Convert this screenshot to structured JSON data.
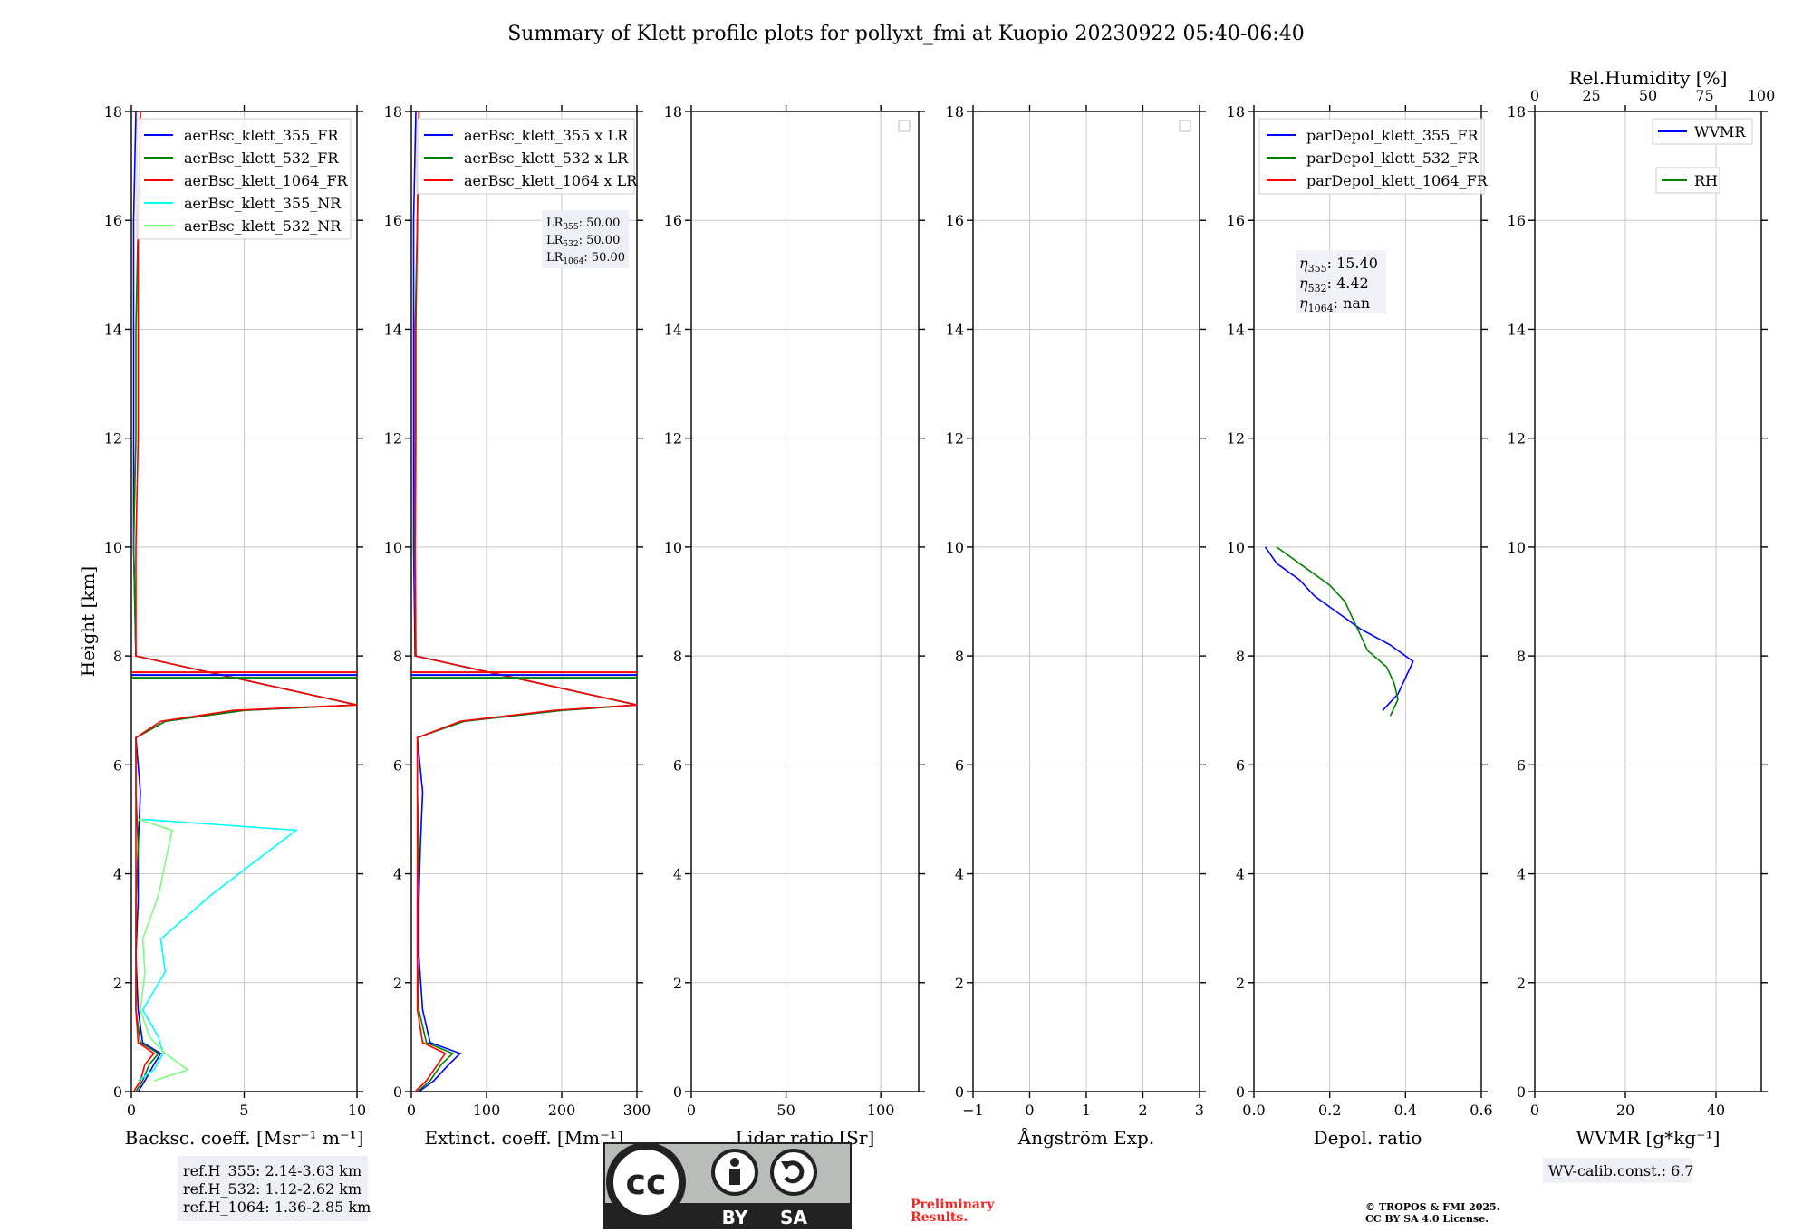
{
  "figure": {
    "title": "Summary of Klett profile plots for pollyxt_fmi at Kuopio 20230922 05:40-06:40",
    "ylabel": "Height [km]",
    "ref_heights": [
      "ref.H_355: 2.14-3.63 km",
      "ref.H_532: 1.12-2.62 km",
      "ref.H_1064: 1.36-2.85 km"
    ],
    "wv_calib": "WV-calib.const.: 6.7",
    "preliminary": [
      "Preliminary",
      "Results."
    ],
    "copyright": [
      "© TROPOS & FMI 2025.",
      "CC BY SA 4.0 License."
    ],
    "license_badge": {
      "by": "BY",
      "sa": "SA",
      "cc": "cc"
    },
    "lr_annotation": [
      "50.00",
      "50.00",
      "50.00"
    ],
    "lr_labels": [
      "LR",
      "LR",
      "LR"
    ],
    "lr_subs": [
      "355",
      "532",
      "1064"
    ],
    "eta_annotation": [
      "15.40",
      "4.42",
      "nan"
    ],
    "eta_labels": [
      "η",
      "η",
      "η"
    ],
    "eta_subs": [
      "355",
      "532",
      "1064"
    ]
  },
  "colors": {
    "b355": "#0000ff",
    "g532": "#008000",
    "r1064": "#ff0000",
    "cyan": "#00ffff",
    "lime": "#7cfc7c",
    "grid": "#c8c8c8",
    "prelim": "#ff0000"
  },
  "chart_data": [
    {
      "type": "line",
      "xlabel": "Backsc. coeff. [Msr⁻¹ m⁻¹]",
      "xlim": [
        0,
        10
      ],
      "xticks": [
        0,
        5,
        10
      ],
      "ylim": [
        0,
        18
      ],
      "legend": [
        "aerBsc_klett_355_FR",
        "aerBsc_klett_532_FR",
        "aerBsc_klett_1064_FR",
        "aerBsc_klett_355_NR",
        "aerBsc_klett_532_NR"
      ],
      "series_y": [
        0,
        0.2,
        0.5,
        0.7,
        0.9,
        1.5,
        2.5,
        3.5,
        4.5,
        5.5,
        6.5,
        6.8,
        7.0,
        7.1,
        8,
        10,
        12,
        14,
        16,
        18
      ],
      "series_x_355": [
        0.3,
        0.6,
        1.0,
        1.3,
        0.5,
        0.3,
        0.2,
        0.3,
        0.3,
        0.4,
        0.2,
        1.5,
        5.0,
        10,
        0.2,
        0.1,
        0.1,
        0.1,
        0.1,
        0.2
      ],
      "series_x_532": [
        0.2,
        0.5,
        0.8,
        1.2,
        0.4,
        0.2,
        0.2,
        0.2,
        0.3,
        0.2,
        0.2,
        1.5,
        5.0,
        10,
        0.2,
        0.1,
        0.2,
        0.2,
        0.3,
        0.4
      ],
      "series_x_1064": [
        0.1,
        0.4,
        0.6,
        1.0,
        0.3,
        0.2,
        0.2,
        0.2,
        0.2,
        0.2,
        0.2,
        1.3,
        4.5,
        10,
        0.2,
        0.2,
        0.3,
        0.3,
        0.3,
        0.4
      ],
      "series_x_355nr": [
        0.3,
        1.0,
        1.4,
        1.2,
        0.5,
        1.5,
        1.3,
        3.5,
        7.3,
        0.5
      ],
      "series_y_nr": [
        0.2,
        0.4,
        0.7,
        1.0,
        1.5,
        2.2,
        2.8,
        3.6,
        4.8,
        5.0
      ],
      "series_x_532nr": [
        1.0,
        2.5,
        1.5,
        0.8,
        0.4,
        0.6,
        0.5,
        1.2,
        1.8,
        0.3
      ],
      "hlines_km": [
        7.6,
        7.7
      ]
    },
    {
      "type": "line",
      "xlabel": "Extinct. coeff. [Mm⁻¹]",
      "xlim": [
        0,
        300
      ],
      "xticks": [
        0,
        100,
        200,
        300
      ],
      "ylim": [
        0,
        18
      ],
      "legend": [
        "aerBsc_klett_355 x LR",
        "aerBsc_klett_532 x LR",
        "aerBsc_klett_1064 x LR"
      ],
      "series_y": [
        0,
        0.2,
        0.5,
        0.7,
        0.9,
        1.5,
        2.5,
        3.5,
        4.5,
        5.5,
        6.5,
        6.8,
        7.0,
        7.1,
        8,
        10,
        12,
        14,
        16,
        18
      ],
      "series_x_355": [
        10,
        30,
        50,
        65,
        25,
        15,
        10,
        10,
        12,
        15,
        8,
        70,
        200,
        300,
        5,
        3,
        3,
        3,
        3,
        6
      ],
      "series_x_532": [
        8,
        25,
        40,
        55,
        20,
        10,
        8,
        8,
        10,
        8,
        8,
        70,
        200,
        300,
        6,
        4,
        5,
        5,
        8,
        10
      ],
      "series_x_1064": [
        5,
        20,
        35,
        45,
        15,
        8,
        8,
        8,
        8,
        8,
        8,
        65,
        190,
        300,
        6,
        5,
        6,
        6,
        8,
        10
      ],
      "hlines_km": [
        7.6,
        7.7
      ]
    },
    {
      "type": "line",
      "xlabel": "Lidar ratio [Sr]",
      "xlim": [
        0,
        120
      ],
      "xticks": [
        0,
        50,
        100
      ],
      "ylim": [
        0,
        18
      ]
    },
    {
      "type": "line",
      "xlabel": "Ångström Exp.",
      "xlim": [
        -1,
        3
      ],
      "xticks": [
        -1,
        0,
        1,
        2,
        3
      ],
      "ylim": [
        0,
        18
      ]
    },
    {
      "type": "line",
      "xlabel": "Depol. ratio",
      "xlim": [
        0,
        0.6
      ],
      "xticks": [
        0.0,
        0.2,
        0.4,
        0.6
      ],
      "ylim": [
        0,
        18
      ],
      "legend": [
        "parDepol_klett_355_FR",
        "parDepol_klett_532_FR",
        "parDepol_klett_1064_FR"
      ],
      "series_y_355": [
        7.0,
        7.3,
        7.6,
        7.9,
        8.2,
        8.5,
        8.8,
        9.1,
        9.4,
        9.7,
        10.0
      ],
      "series_x_355": [
        0.34,
        0.38,
        0.4,
        0.42,
        0.36,
        0.28,
        0.22,
        0.16,
        0.12,
        0.06,
        0.03
      ],
      "series_y_532": [
        6.9,
        7.2,
        7.5,
        7.8,
        8.1,
        8.4,
        8.7,
        9.0,
        9.3,
        9.6,
        10.0
      ],
      "series_x_532": [
        0.36,
        0.38,
        0.37,
        0.35,
        0.3,
        0.28,
        0.26,
        0.24,
        0.2,
        0.14,
        0.06
      ]
    },
    {
      "type": "line",
      "xlabel": "WVMR [g*kg⁻¹]",
      "xlim": [
        0,
        50
      ],
      "xticks": [
        0,
        20,
        40
      ],
      "ylim": [
        0,
        18
      ],
      "top_xlabel": "Rel.Humidity [%]",
      "top_xticks": [
        0,
        25,
        50,
        75,
        100
      ],
      "legend": [
        "WVMR",
        "RH"
      ]
    }
  ],
  "yticks": [
    0,
    2,
    4,
    6,
    8,
    10,
    12,
    14,
    16,
    18
  ]
}
